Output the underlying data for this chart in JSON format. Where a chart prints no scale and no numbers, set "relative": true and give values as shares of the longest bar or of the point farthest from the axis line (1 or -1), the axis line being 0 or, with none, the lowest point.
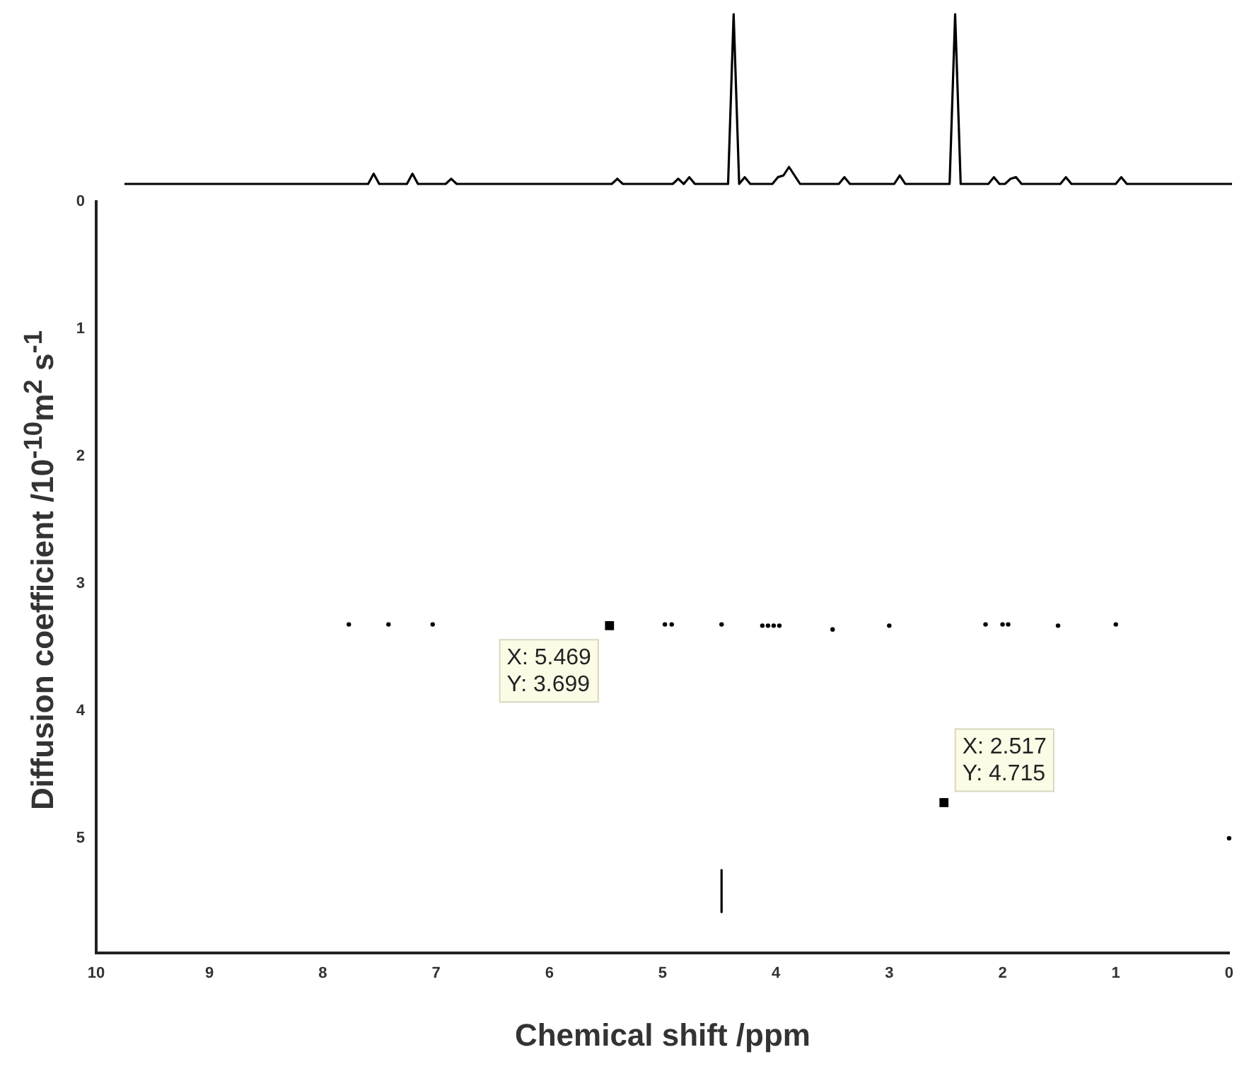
{
  "chart_data": [
    {
      "type": "line",
      "relative": true,
      "grid": false,
      "legend": false,
      "categories": [
        null,
        null,
        null,
        null,
        null,
        null,
        null,
        null,
        null,
        null,
        null,
        null,
        null,
        null,
        null,
        null,
        null,
        null,
        null,
        null,
        null,
        null,
        null,
        null,
        null,
        null,
        null,
        null,
        null,
        null,
        null,
        null,
        null,
        null,
        null,
        null,
        null,
        null,
        null,
        null,
        null,
        null,
        null,
        null,
        null,
        null,
        null,
        null,
        null,
        null,
        null,
        null,
        null,
        null,
        null,
        null,
        null,
        null,
        null,
        null,
        null,
        null,
        null,
        null,
        null,
        null,
        null,
        null,
        null,
        null,
        null,
        null,
        null,
        null,
        null,
        null,
        null,
        null,
        null,
        null,
        null,
        null,
        null,
        null,
        null,
        null,
        null,
        null,
        null,
        null,
        null,
        null,
        null,
        null,
        null,
        null,
        null,
        null,
        null,
        null,
        null,
        null,
        null,
        null,
        null,
        null,
        null,
        null,
        null,
        null,
        null,
        null,
        null,
        null,
        null,
        null,
        null,
        null,
        null,
        null,
        null,
        null,
        null,
        null,
        null,
        null,
        null,
        null,
        null,
        null,
        null,
        null,
        null,
        null,
        null,
        null,
        null,
        null,
        null,
        null,
        null,
        null,
        null,
        null,
        null,
        null,
        null,
        null,
        null,
        null,
        null,
        null,
        null,
        null,
        null,
        null,
        null,
        null,
        null,
        null,
        null,
        null,
        null,
        null,
        null,
        null,
        null,
        null,
        null,
        null,
        null,
        null,
        null,
        null,
        null,
        null,
        null,
        null,
        null,
        null,
        null,
        null,
        null,
        null,
        null,
        null,
        null,
        null,
        null,
        null,
        null,
        null,
        null,
        null,
        null,
        null,
        null,
        null,
        null,
        null,
        null
      ],
      "series": [
        {
          "color": "#000000",
          "values": [
            0,
            0,
            0,
            0,
            0,
            0,
            0,
            0,
            0,
            0,
            0,
            0,
            0,
            0,
            0,
            0,
            0,
            0,
            0,
            0,
            0,
            0,
            0,
            0,
            0,
            0,
            0,
            0,
            0,
            0,
            0,
            0,
            0,
            0,
            0,
            0,
            0,
            0,
            0,
            0,
            0,
            0,
            0,
            0,
            0,
            0.06,
            0,
            0,
            0,
            0,
            0,
            0,
            0.06,
            0,
            0,
            0,
            0,
            0,
            0,
            0.03,
            0,
            0,
            0,
            0,
            0,
            0,
            0,
            0,
            0,
            0,
            0,
            0,
            0,
            0,
            0,
            0,
            0,
            0,
            0,
            0,
            0,
            0,
            0,
            0,
            0,
            0,
            0,
            0,
            0,
            0.03,
            0,
            0,
            0,
            0,
            0,
            0,
            0,
            0,
            0,
            0,
            0.03,
            0,
            0.04,
            0,
            0,
            0,
            0,
            0,
            0,
            0,
            1,
            0,
            0.04,
            0,
            0,
            0,
            0,
            0,
            0.04,
            0.05,
            0.1,
            0.05,
            0,
            0,
            0,
            0,
            0,
            0,
            0,
            0,
            0.04,
            0,
            0,
            0,
            0,
            0,
            0,
            0,
            0,
            0,
            0.05,
            0,
            0,
            0,
            0,
            0,
            0,
            0,
            0,
            0,
            1,
            0,
            0,
            0,
            0,
            0,
            0,
            0.04,
            0,
            0,
            0.03,
            0.04,
            0,
            0,
            0,
            0,
            0,
            0,
            0,
            0,
            0.04,
            0,
            0,
            0,
            0,
            0,
            0,
            0,
            0,
            0,
            0.04,
            0,
            0,
            0,
            0,
            0,
            0,
            0,
            0,
            0,
            0,
            0,
            0,
            0,
            0,
            0,
            0,
            0,
            0,
            0,
            0
          ]
        }
      ]
    },
    {
      "type": "scatter",
      "xlabel": "Chemical shift /ppm",
      "ylabel": "Diffusion coefficient  /10$^{-10}$m$^{2}$ s$^{-1}$",
      "xlim": [
        10,
        0
      ],
      "xticks": [
        10,
        9,
        8,
        7,
        6,
        5,
        4,
        3,
        2,
        1,
        0
      ],
      "ylim": [
        5.9,
        0
      ],
      "yticks": [
        0,
        1,
        2,
        3,
        4,
        5
      ],
      "grid": false,
      "legend": false,
      "series": [
        {
          "color": "#000000",
          "marker": "circle",
          "x": [
            7.77,
            7.42,
            7.03,
            4.98,
            4.92,
            4.48,
            4.12,
            4.07,
            4.02,
            3.97,
            3.5,
            3.0,
            2.15,
            2.0,
            1.95,
            1.51,
            1.0,
            0
          ],
          "values": [
            3.32,
            3.32,
            3.32,
            3.32,
            3.32,
            3.32,
            3.33,
            3.33,
            3.33,
            3.33,
            3.36,
            3.33,
            3.32,
            3.32,
            3.32,
            3.33,
            3.32,
            5.0
          ]
        },
        {
          "type": "line",
          "color": "#000000",
          "x": [
            4.48,
            4.48
          ],
          "values": [
            5.25,
            5.58
          ]
        },
        {
          "color": "#000000",
          "marker": "square",
          "x": [
            5.469,
            2.517
          ],
          "values": [
            3.33,
            4.72
          ]
        }
      ],
      "annotations": [
        {
          "text": "X: 5.469\nY: 3.699",
          "x": 5.469,
          "y": 3.33
        },
        {
          "text": "X: 2.517\nY: 4.715",
          "x": 2.517,
          "y": 4.72
        }
      ]
    }
  ]
}
